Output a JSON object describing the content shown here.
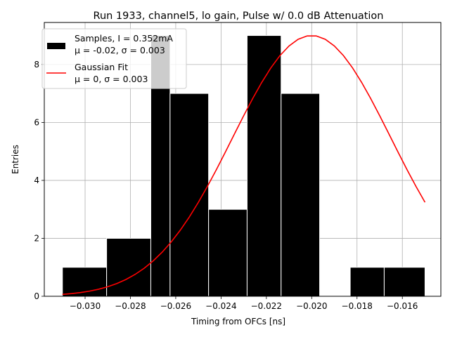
{
  "chart_data": {
    "type": "bar",
    "title": "Run 1933, channel5, lo gain, Pulse w/ 0.0 dB Attenuation",
    "xlabel": "Timing from OFCs [ns]",
    "ylabel": "Entries",
    "xlim": [
      -0.0318,
      -0.0143
    ],
    "ylim": [
      0,
      9.45
    ],
    "grid": true,
    "legend_position": "top-left",
    "x_ticks": [
      -0.03,
      -0.028,
      -0.026,
      -0.024,
      -0.022,
      -0.02,
      -0.018,
      -0.016
    ],
    "x_tick_labels": [
      "−0.030",
      "−0.028",
      "−0.026",
      "−0.024",
      "−0.022",
      "−0.020",
      "−0.018",
      "−0.016"
    ],
    "y_ticks": [
      0,
      2,
      4,
      6,
      8
    ],
    "y_tick_labels": [
      "0",
      "2",
      "4",
      "6",
      "8"
    ],
    "histogram": {
      "name": "Samples, I = 0.352mA",
      "name_line2": "μ = -0.02, σ = 0.003",
      "color": "#000000",
      "edge_color": "#ffffff",
      "bins": [
        {
          "x0": -0.031,
          "x1": -0.02905,
          "count": 1
        },
        {
          "x0": -0.02905,
          "x1": -0.0271,
          "count": 2
        },
        {
          "x0": -0.0271,
          "x1": -0.02625,
          "count": 9
        },
        {
          "x0": -0.02625,
          "x1": -0.02455,
          "count": 7
        },
        {
          "x0": -0.02455,
          "x1": -0.02285,
          "count": 3
        },
        {
          "x0": -0.02285,
          "x1": -0.02135,
          "count": 9
        },
        {
          "x0": -0.02135,
          "x1": -0.01965,
          "count": 7
        },
        {
          "x0": -0.01965,
          "x1": -0.0183,
          "count": 0
        },
        {
          "x0": -0.0183,
          "x1": -0.0168,
          "count": 1
        },
        {
          "x0": -0.0168,
          "x1": -0.015,
          "count": 1
        }
      ]
    },
    "fit": {
      "name": "Gaussian Fit",
      "name_line2": "μ = 0, σ = 0.003",
      "color": "#ff0000",
      "x_start": -0.031,
      "x_end": -0.015,
      "points": 41,
      "amplitude": 9.0,
      "mean": -0.02,
      "sigma": 0.0035
    }
  }
}
